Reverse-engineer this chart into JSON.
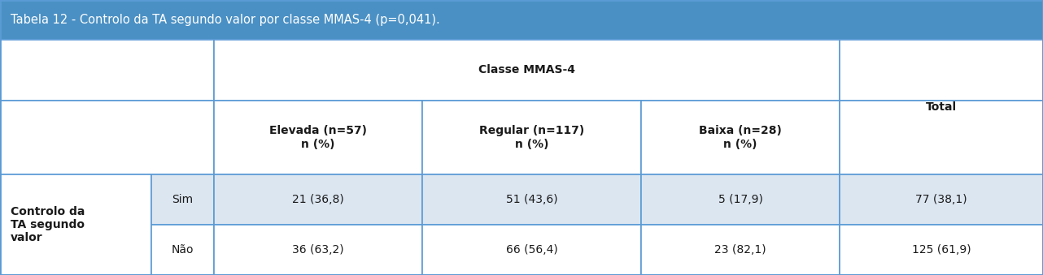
{
  "title": "Tabela 12 - Controlo da TA segundo valor por classe MMAS-4 (p=0,041).",
  "title_bg": "#4a90c4",
  "title_color": "#ffffff",
  "header_bg": "#ffffff",
  "row1_bg": "#dce6f1",
  "row2_bg": "#ffffff",
  "col_header_main": "Classe MMAS-4",
  "col_headers": [
    "Elevada (n=57)\nn (%)",
    "Regular (n=117)\nn (%)",
    "Baixa (n=28)\nn (%)"
  ],
  "total_header": "Total",
  "row_label_main": "Controlo da\nTA segundo\nvalor",
  "row_labels": [
    "Sim",
    "Não"
  ],
  "data": [
    [
      "21 (36,8)",
      "51 (43,6)",
      "5 (17,9)",
      "77 (38,1)"
    ],
    [
      "36 (63,2)",
      "66 (56,4)",
      "23 (82,1)",
      "125 (61,9)"
    ]
  ],
  "border_color": "#5b9bd5",
  "text_color": "#1a1a1a",
  "title_fontsize": 10.5,
  "header_fontsize": 10,
  "cell_fontsize": 10
}
